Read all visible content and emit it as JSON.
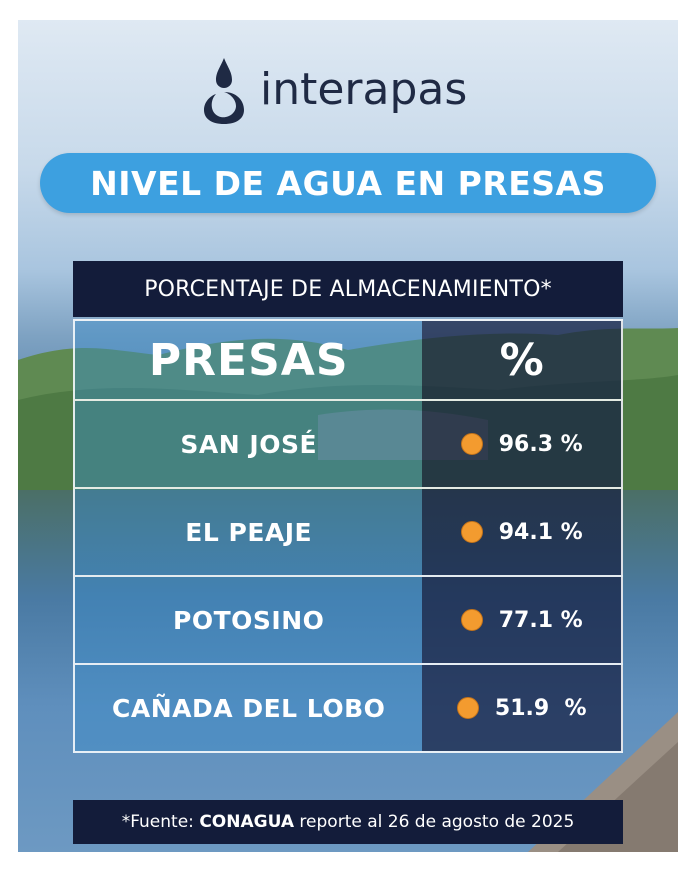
{
  "brand": {
    "name": "interapas",
    "icon": "water-drop-logo-icon",
    "color": "#1f2a44"
  },
  "title": "NIVEL DE AGUA EN PRESAS",
  "subtitle": "PORCENTAJE DE ALMACENAMIENTO*",
  "table": {
    "headers": {
      "name": "PRESAS",
      "percent": "%"
    },
    "rows": [
      {
        "name": "SAN JOSÉ",
        "percent": "96.3 %",
        "indicator": "orange-dot-icon"
      },
      {
        "name": "EL PEAJE",
        "percent": "94.1 %",
        "indicator": "orange-dot-icon"
      },
      {
        "name": "POTOSINO",
        "percent": "77.1 %",
        "indicator": "orange-dot-icon"
      },
      {
        "name": "CAÑADA DEL LOBO",
        "percent": "51.9  %",
        "indicator": "orange-dot-icon"
      }
    ]
  },
  "footer": {
    "prefix": "*Fuente: ",
    "source": "CONAGUA",
    "suffix": " reporte al 26 de agosto de 2025"
  },
  "colors": {
    "accent": "#3da0e0",
    "dark": "#131c3a",
    "indicator": "#f39b2f"
  }
}
